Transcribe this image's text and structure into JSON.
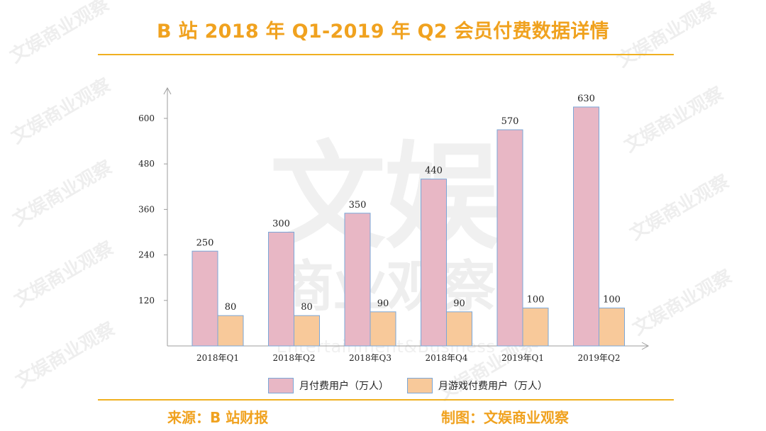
{
  "header": {
    "title": "B 站 2018 年 Q1-2019 年 Q2 会员付费数据详情"
  },
  "chart_data": {
    "type": "bar",
    "categories": [
      "2018年Q1",
      "2018年Q2",
      "2018年Q3",
      "2018年Q4",
      "2019年Q1",
      "2019年Q2"
    ],
    "series": [
      {
        "name": "月付费用户（万人）",
        "values": [
          250,
          300,
          350,
          440,
          570,
          630
        ],
        "color": "#e8b7c5",
        "stroke": "#7aa7d8"
      },
      {
        "name": "月游戏付费用户（万人）",
        "values": [
          80,
          80,
          90,
          90,
          100,
          100
        ],
        "color": "#f8c99a",
        "stroke": "#7aa7d8"
      }
    ],
    "title": "B 站 2018 年 Q1-2019 年 Q2 会员付费数据详情",
    "xlabel": "",
    "ylabel": "",
    "ylim": [
      0,
      600
    ],
    "yticks": [
      120,
      240,
      360,
      480,
      600
    ],
    "grid": false,
    "legend_position": "bottom-center"
  },
  "footer": {
    "source": "来源：B 站财报",
    "credit": "制图：文娱商业观察"
  },
  "watermark": {
    "big": "文娱",
    "mid": "商业观察",
    "en": "Entertainment&Business",
    "diagonal": "文娱商业观察"
  },
  "colors": {
    "accent": "#f0a21f",
    "axis": "#9d9d9d"
  }
}
